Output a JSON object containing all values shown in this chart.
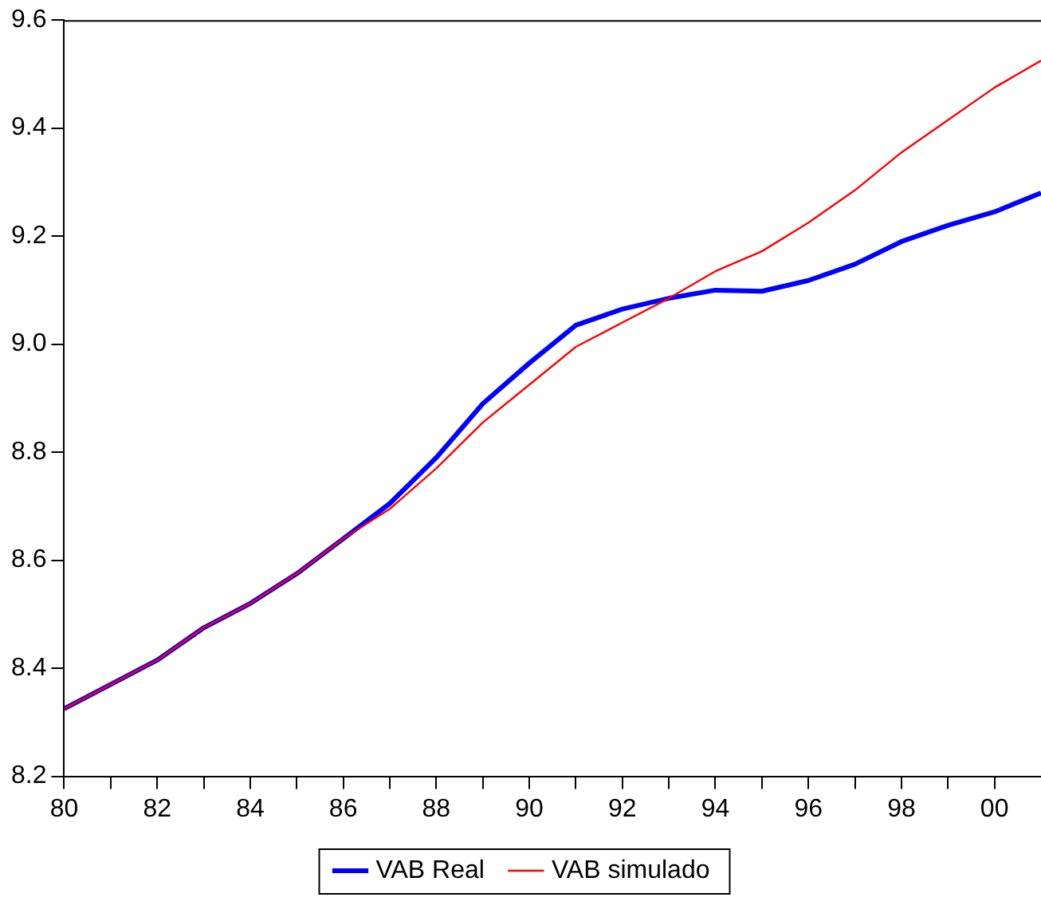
{
  "chart_data": {
    "type": "line",
    "x": [
      1980,
      1981,
      1982,
      1983,
      1984,
      1985,
      1986,
      1987,
      1988,
      1989,
      1990,
      1991,
      1992,
      1993,
      1994,
      1995,
      1996,
      1997,
      1998,
      1999,
      2000,
      2001
    ],
    "series": [
      {
        "name": "VAB Real",
        "color": "#0000ff",
        "values": [
          8.325,
          8.37,
          8.415,
          8.475,
          8.52,
          8.575,
          8.64,
          8.705,
          8.79,
          8.89,
          8.965,
          9.035,
          9.065,
          9.085,
          9.1,
          9.098,
          9.118,
          9.148,
          9.19,
          9.22,
          9.245,
          9.28
        ]
      },
      {
        "name": "VAB simulado",
        "color": "#ff0000",
        "values": [
          8.325,
          8.37,
          8.415,
          8.475,
          8.52,
          8.575,
          8.64,
          8.695,
          8.77,
          8.855,
          8.925,
          8.995,
          9.04,
          9.085,
          9.135,
          9.172,
          9.225,
          9.285,
          9.355,
          9.415,
          9.475,
          9.525
        ]
      }
    ],
    "xlim": [
      1980,
      2001
    ],
    "xticks": [
      {
        "value": 1980,
        "label": "80"
      },
      {
        "value": 1981,
        "label": null
      },
      {
        "value": 1982,
        "label": "82"
      },
      {
        "value": 1983,
        "label": null
      },
      {
        "value": 1984,
        "label": "84"
      },
      {
        "value": 1985,
        "label": null
      },
      {
        "value": 1986,
        "label": "86"
      },
      {
        "value": 1987,
        "label": null
      },
      {
        "value": 1988,
        "label": "88"
      },
      {
        "value": 1989,
        "label": null
      },
      {
        "value": 1990,
        "label": "90"
      },
      {
        "value": 1991,
        "label": null
      },
      {
        "value": 1992,
        "label": "92"
      },
      {
        "value": 1993,
        "label": null
      },
      {
        "value": 1994,
        "label": "94"
      },
      {
        "value": 1995,
        "label": null
      },
      {
        "value": 1996,
        "label": "96"
      },
      {
        "value": 1997,
        "label": null
      },
      {
        "value": 1998,
        "label": "98"
      },
      {
        "value": 1999,
        "label": null
      },
      {
        "value": 2000,
        "label": "00"
      }
    ],
    "ylim": [
      8.2,
      9.6
    ],
    "yticks": [
      {
        "value": 8.2,
        "label": "8.2"
      },
      {
        "value": 8.4,
        "label": "8.4"
      },
      {
        "value": 8.6,
        "label": "8.6"
      },
      {
        "value": 8.8,
        "label": "8.8"
      },
      {
        "value": 9.0,
        "label": "9.0"
      },
      {
        "value": 9.2,
        "label": "9.2"
      },
      {
        "value": 9.4,
        "label": "9.4"
      },
      {
        "value": 9.6,
        "label": "9.6"
      }
    ],
    "grid": false,
    "legend": "bottom",
    "marker": "none",
    "line_style": "solid"
  }
}
